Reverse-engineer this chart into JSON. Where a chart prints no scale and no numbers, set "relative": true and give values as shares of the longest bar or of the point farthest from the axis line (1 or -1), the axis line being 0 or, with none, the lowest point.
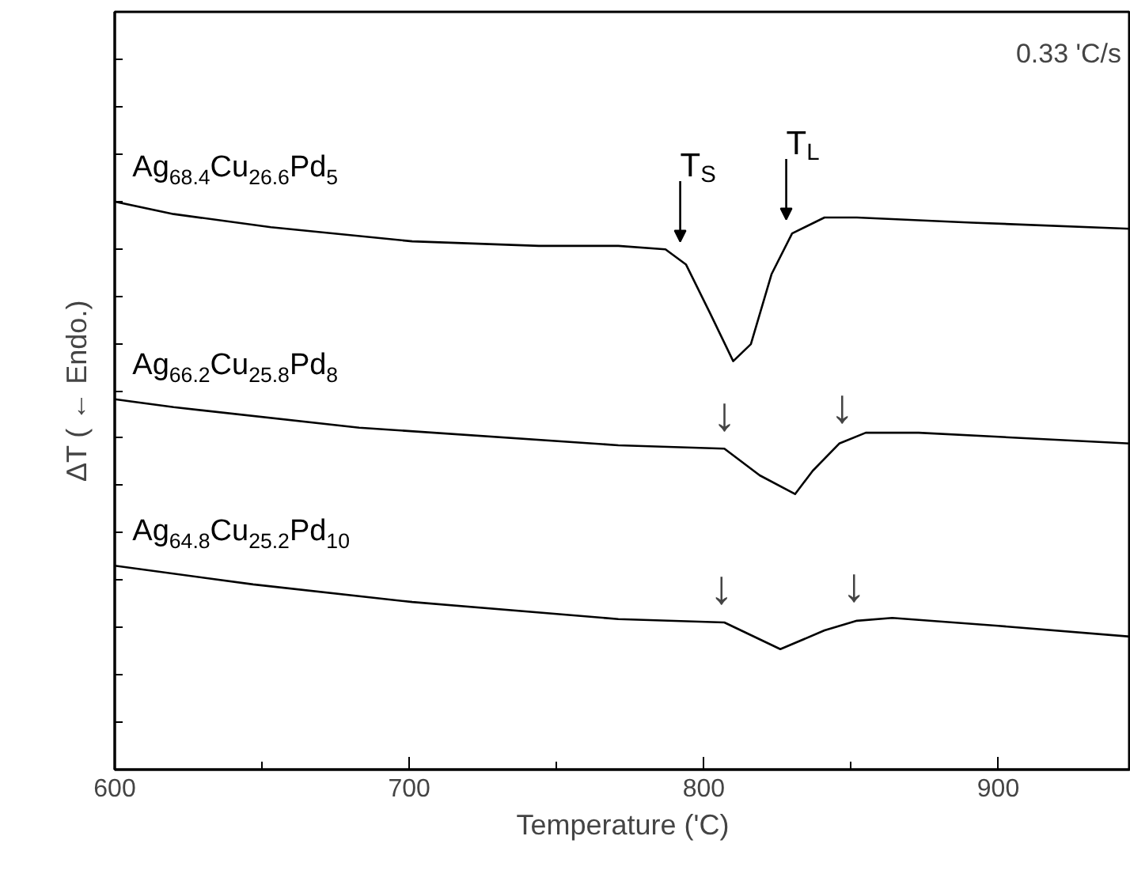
{
  "chart_data": {
    "type": "line",
    "relative": true,
    "xlabel": "Temperature ('C)",
    "ylabel": "ΔT ( ← Endo.)",
    "xlim": [
      600,
      945
    ],
    "xticks": [
      600,
      700,
      800,
      900
    ],
    "tick_labels": "x",
    "grid": false,
    "legend": "left",
    "series": [
      {
        "name": "Ag$_{68.4}$Cu$_{26.6}$Pd$_{5}$",
        "color": "#000000",
        "x": [
          600,
          620,
          653,
          701,
          744,
          771,
          787,
          794,
          802,
          810,
          816,
          823,
          830,
          841,
          852,
          891,
          945
        ],
        "values": [
          1.0,
          0.978,
          0.955,
          0.93,
          0.922,
          0.922,
          0.916,
          0.889,
          0.805,
          0.719,
          0.749,
          0.872,
          0.944,
          0.972,
          0.972,
          0.963,
          0.952
        ]
      },
      {
        "name": "Ag$_{66.2}$Cu$_{25.8}$Pd$_{8}$",
        "color": "#000000",
        "x": [
          600,
          620,
          683,
          771,
          807,
          819,
          831,
          837,
          846,
          855,
          873,
          945
        ],
        "values": [
          0.652,
          0.638,
          0.602,
          0.571,
          0.565,
          0.518,
          0.485,
          0.526,
          0.574,
          0.593,
          0.593,
          0.574
        ]
      },
      {
        "name": "Ag$_{64.8}$Cu$_{25.2}$Pd$_{10}$",
        "color": "#000000",
        "x": [
          600,
          647,
          701,
          771,
          807,
          826,
          841,
          852,
          864,
          900,
          945
        ],
        "values": [
          0.359,
          0.326,
          0.295,
          0.265,
          0.259,
          0.212,
          0.245,
          0.262,
          0.267,
          0.253,
          0.234
        ]
      }
    ],
    "annotations": [
      "0.33 'C/s",
      {
        "text": "T$_{S}$",
        "x": 792,
        "y": 0.916
      },
      {
        "text": "T$_{L}$",
        "x": 828,
        "y": 0.955
      },
      {
        "text": "↓",
        "x": 807,
        "y": 0.565
      },
      {
        "text": "↓",
        "x": 847,
        "y": 0.578
      },
      {
        "text": "↓",
        "x": 806,
        "y": 0.259
      },
      {
        "text": "↓",
        "x": 851,
        "y": 0.264
      }
    ]
  }
}
